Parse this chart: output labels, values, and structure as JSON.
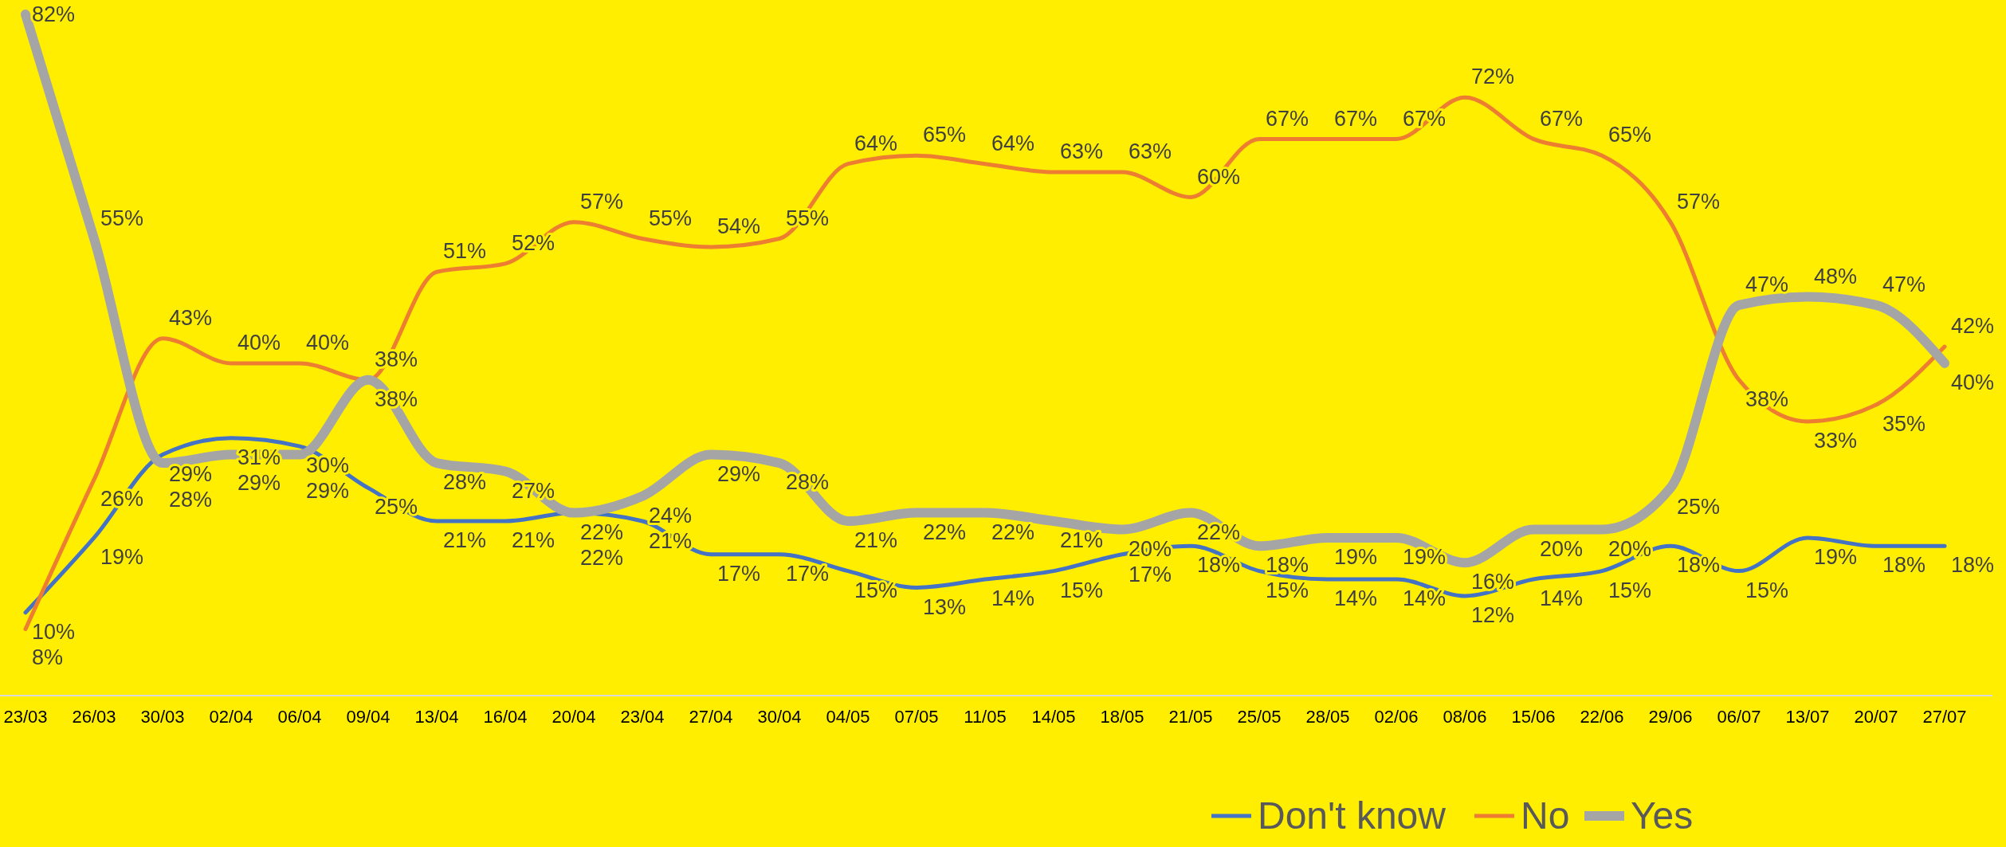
{
  "chart_data": {
    "type": "line",
    "categories": [
      "23/03",
      "26/03",
      "30/03",
      "02/04",
      "06/04",
      "09/04",
      "13/04",
      "16/04",
      "20/04",
      "23/04",
      "27/04",
      "30/04",
      "04/05",
      "07/05",
      "11/05",
      "14/05",
      "18/05",
      "21/05",
      "25/05",
      "28/05",
      "02/06",
      "08/06",
      "15/06",
      "22/06",
      "29/06",
      "06/07",
      "13/07",
      "20/07",
      "27/07"
    ],
    "series": [
      {
        "name": "Don't know",
        "color": "#4472c4",
        "values": [
          10,
          19,
          29,
          31,
          30,
          25,
          21,
          21,
          22,
          21,
          17,
          17,
          15,
          13,
          14,
          15,
          17,
          18,
          15,
          14,
          14,
          12,
          14,
          15,
          18,
          15,
          19,
          18,
          18
        ],
        "value_labels": [
          "10%",
          "19%",
          "29%",
          "31%",
          "30%",
          "25%",
          "21%",
          "21%",
          "22%",
          "21%",
          "17%",
          "17%",
          "15%",
          "13%",
          "14%",
          "15%",
          "17%",
          "18%",
          "15%",
          "14%",
          "14%",
          "12%",
          "14%",
          "15%",
          "18%",
          "15%",
          "19%",
          "18%",
          "18%"
        ]
      },
      {
        "name": "No",
        "color": "#ed7d31",
        "values": [
          8,
          26,
          43,
          40,
          40,
          38,
          51,
          52,
          57,
          55,
          54,
          55,
          64,
          65,
          64,
          63,
          63,
          60,
          67,
          67,
          67,
          72,
          67,
          65,
          57,
          38,
          33,
          35,
          42
        ],
        "value_labels": [
          "8%",
          "26%",
          "43%",
          "40%",
          "40%",
          "38%",
          "51%",
          "52%",
          "57%",
          "55%",
          "54%",
          "55%",
          "64%",
          "65%",
          "64%",
          "63%",
          "63%",
          "60%",
          "67%",
          "67%",
          "67%",
          "72%",
          "67%",
          "65%",
          "57%",
          "38%",
          "33%",
          "35%",
          "42%"
        ]
      },
      {
        "name": "Yes",
        "color": "#a5a5a5",
        "values": [
          82,
          55,
          28,
          29,
          29,
          38,
          28,
          27,
          22,
          24,
          29,
          28,
          21,
          22,
          22,
          21,
          20,
          22,
          18,
          19,
          19,
          16,
          20,
          20,
          25,
          47,
          48,
          47,
          40
        ],
        "value_labels": [
          "82%",
          "55%",
          "28%",
          "29%",
          "29%",
          "38%",
          "28%",
          "27%",
          "22%",
          "24%",
          "29%",
          "28%",
          "21%",
          "22%",
          "22%",
          "21%",
          "20%",
          "22%",
          "18%",
          "19%",
          "19%",
          "16%",
          "20%",
          "20%",
          "25%",
          "47%",
          "48%",
          "47%",
          "40%"
        ]
      }
    ],
    "legend": "bottom right",
    "grid": false,
    "marker": "none",
    "line_style": "solid"
  }
}
